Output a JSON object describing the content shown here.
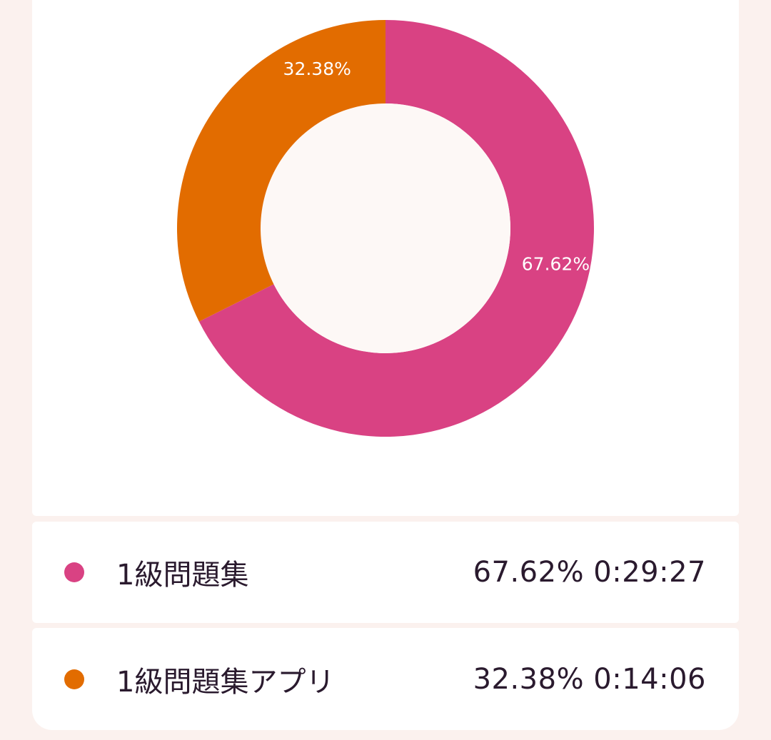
{
  "colors": {
    "series_1": "#d94283",
    "series_2": "#e26c00",
    "hole": "#fdf8f6"
  },
  "chart_data": {
    "type": "pie",
    "donut": true,
    "categories": [
      "1級問題集",
      "1級問題集アプリ"
    ],
    "values": [
      67.62,
      32.38
    ],
    "slice_labels": [
      "67.62%",
      "32.38%"
    ],
    "title": "",
    "legend_placement": "bottom"
  },
  "legend": {
    "items": [
      {
        "name": "1級問題集",
        "value": "67.62% 0:29:27"
      },
      {
        "name": "1級問題集アプリ",
        "value": "32.38% 0:14:06"
      }
    ]
  }
}
